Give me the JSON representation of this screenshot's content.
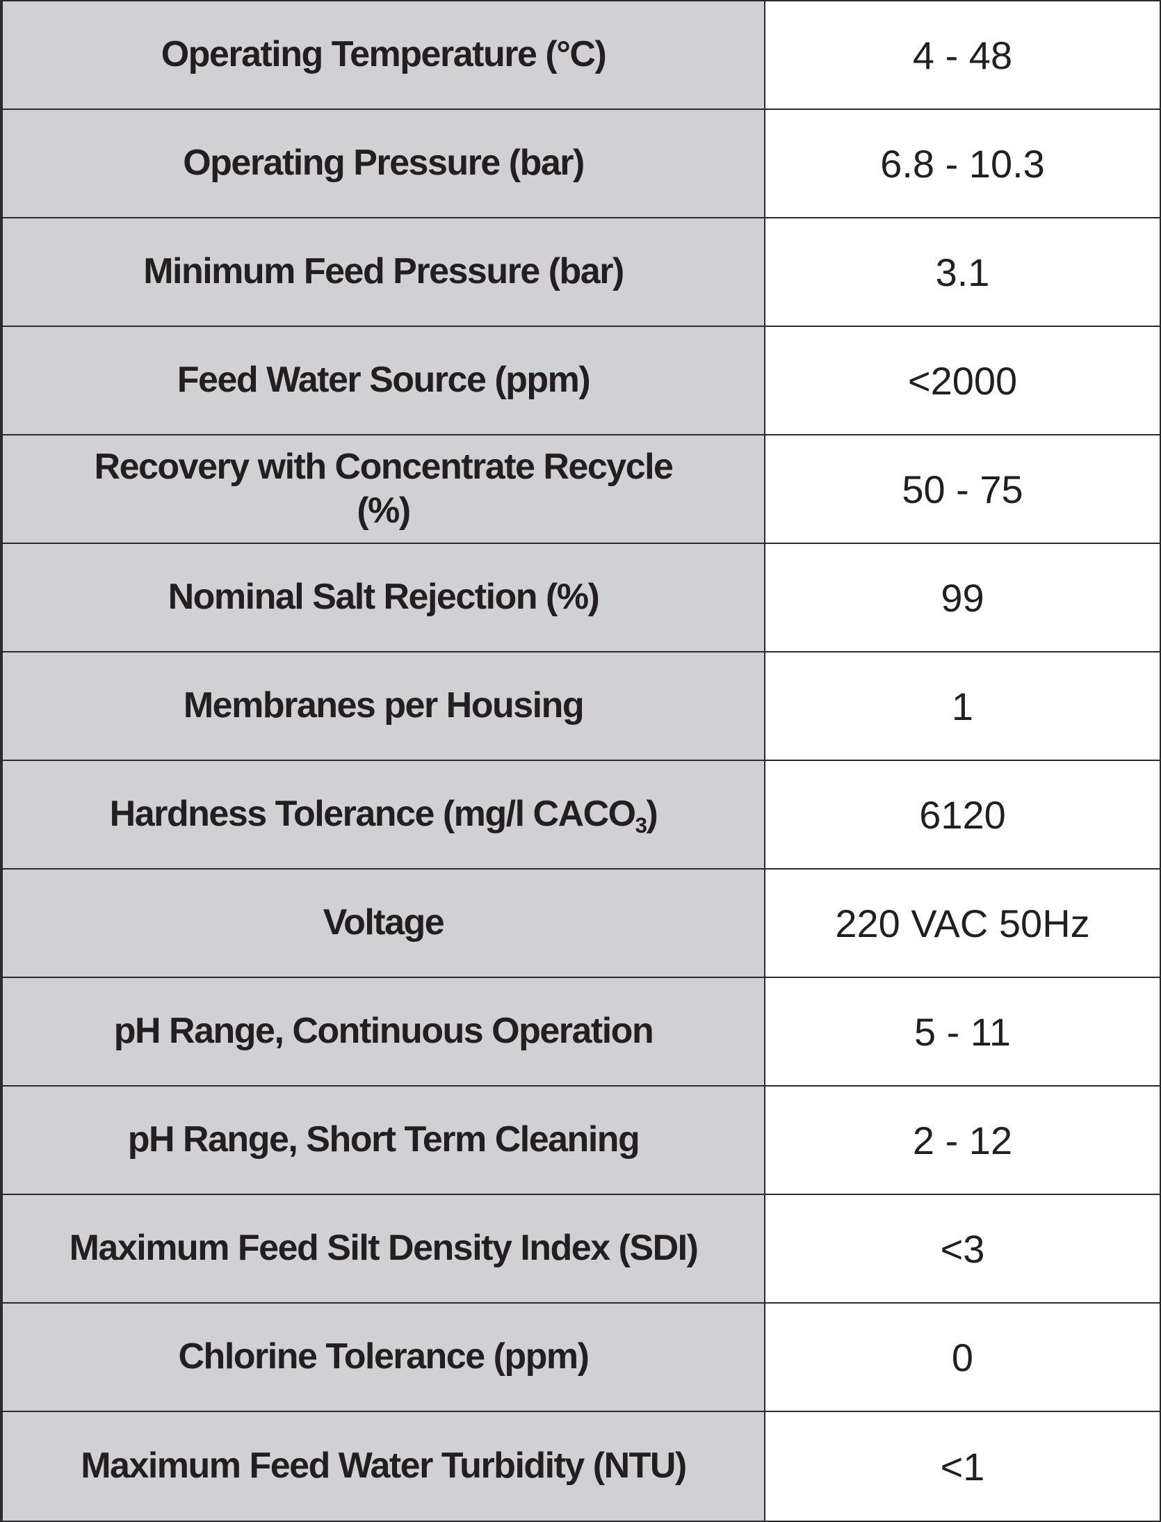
{
  "colors": {
    "label_column_bg": "#d1d1d3",
    "value_column_bg": "#ffffff",
    "border": "#2b2b2b",
    "text": "#231f20"
  },
  "table": {
    "columns": [
      "parameter",
      "value"
    ],
    "rows": [
      {
        "label": "Operating Temperature (°C)",
        "value": "4 - 48"
      },
      {
        "label": "Operating Pressure (bar)",
        "value": "6.8 - 10.3"
      },
      {
        "label": "Minimum Feed Pressure (bar)",
        "value": "3.1"
      },
      {
        "label": "Feed Water Source (ppm)",
        "value": "<2000"
      },
      {
        "label": "Recovery with Concentrate Recycle\n(%)",
        "value": "50 - 75"
      },
      {
        "label": "Nominal Salt Rejection (%)",
        "value": "99"
      },
      {
        "label": "Membranes per Housing",
        "value": "1"
      },
      {
        "label_parts": {
          "pre": "Hardness Tolerance (mg/l CACO",
          "sub": "3",
          "post": ")"
        },
        "value": "6120"
      },
      {
        "label": "Voltage",
        "value": "220 VAC 50Hz"
      },
      {
        "label": "pH Range, Continuous Operation",
        "value": "5 - 11"
      },
      {
        "label": "pH Range, Short Term Cleaning",
        "value": "2 - 12"
      },
      {
        "label": "Maximum Feed Silt Density Index (SDI)",
        "value": "<3"
      },
      {
        "label": "Chlorine Tolerance (ppm)",
        "value": "0"
      },
      {
        "label": "Maximum Feed Water Turbidity (NTU)",
        "value": "<1"
      }
    ]
  }
}
